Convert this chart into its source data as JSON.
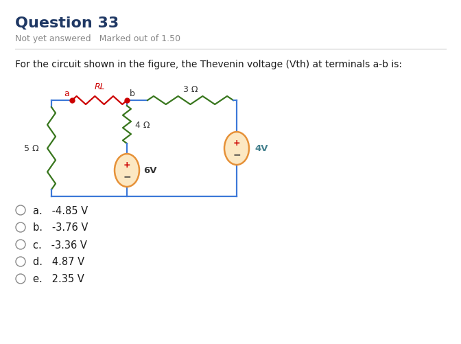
{
  "title": "Question 33",
  "subtitle": "Not yet answered   Marked out of 1.50",
  "question": "For the circuit shown in the figure, the Thevenin voltage (Vth) at terminals a-b is:",
  "options": [
    "a.   -4.85 V",
    "b.   -3.76 V",
    "c.   -3.36 V",
    "d.   4.87 V",
    "e.   2.35 V"
  ],
  "bg_color": "#ffffff",
  "title_color": "#1f3864",
  "subtitle_color": "#888888",
  "question_color": "#1a1a1a",
  "option_color": "#1a1a1a",
  "wire_color": "#3c78d8",
  "res5_color": "#38761d",
  "resRL_color": "#cc0000",
  "res3_color": "#38761d",
  "res4_color": "#38761d",
  "src6_color": "#e69138",
  "src4_color": "#e69138",
  "dot_color": "#cc0000",
  "label_a_color": "#cc0000",
  "label_RL_color": "#cc0000",
  "label_b_color": "#333333",
  "label_4V_color": "#45818e",
  "label_5ohm_color": "#333333",
  "label_3ohm_color": "#333333",
  "label_4ohm_color": "#333333",
  "label_6V_color": "#333333"
}
